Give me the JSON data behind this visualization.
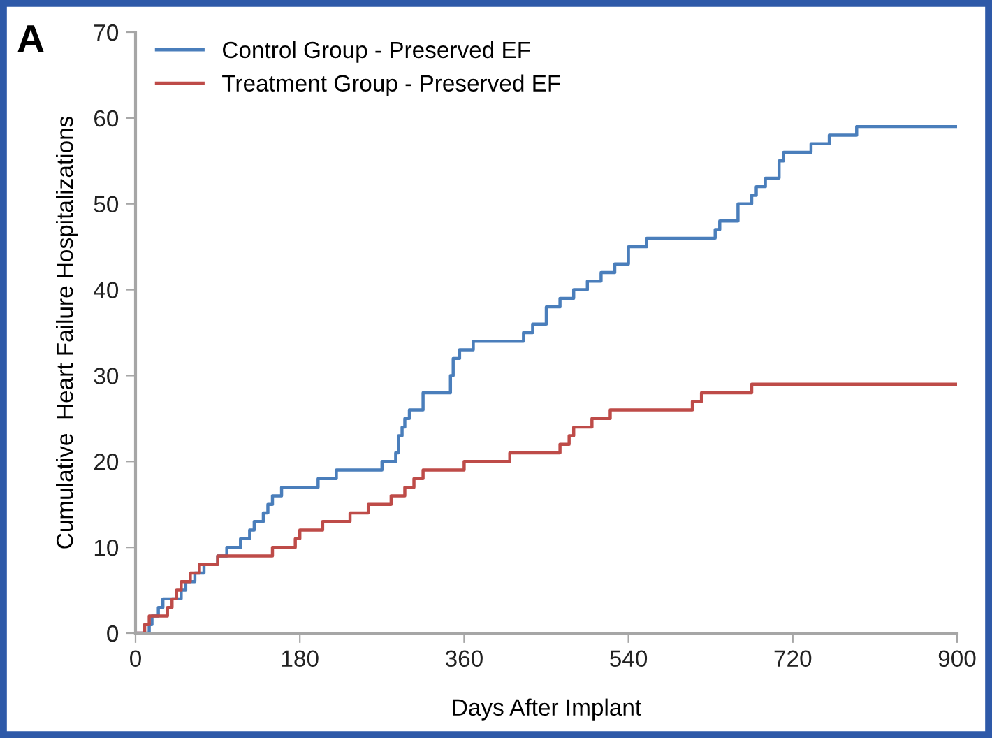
{
  "chart_data": {
    "type": "step",
    "xlabel": "Days After Implant",
    "ylabel": "Cumulative  Heart Failure Hospitalizations",
    "annotations": [
      "A"
    ],
    "xlim": [
      0,
      900
    ],
    "xticks": [
      0,
      180,
      360,
      540,
      720,
      900
    ],
    "ylim": [
      0,
      70
    ],
    "yticks": [
      0,
      10,
      20,
      30,
      40,
      50,
      60,
      70
    ],
    "grid": false,
    "legend": "top left",
    "line_style": "solid",
    "marker": "none",
    "series": [
      {
        "name": "Control Group - Preserved EF",
        "color": "#4a7ebb",
        "x": [
          0,
          15,
          18,
          25,
          30,
          50,
          55,
          65,
          75,
          90,
          100,
          115,
          125,
          130,
          140,
          145,
          150,
          160,
          200,
          220,
          270,
          285,
          288,
          292,
          295,
          300,
          315,
          345,
          348,
          355,
          370,
          425,
          435,
          450,
          465,
          480,
          495,
          510,
          525,
          540,
          560,
          635,
          640,
          660,
          675,
          680,
          690,
          705,
          710,
          740,
          760,
          790,
          900
        ],
        "values": [
          0,
          1,
          2,
          3,
          4,
          5,
          6,
          7,
          8,
          9,
          10,
          11,
          12,
          13,
          14,
          15,
          16,
          17,
          18,
          19,
          20,
          21,
          23,
          24,
          25,
          26,
          28,
          30,
          32,
          33,
          34,
          35,
          36,
          38,
          39,
          40,
          41,
          42,
          43,
          45,
          46,
          47,
          48,
          50,
          51,
          52,
          53,
          55,
          56,
          57,
          58,
          59,
          59
        ]
      },
      {
        "name": "Treatment Group - Preserved EF",
        "color": "#be4b48",
        "x": [
          0,
          10,
          15,
          35,
          40,
          45,
          50,
          60,
          70,
          90,
          150,
          175,
          180,
          205,
          235,
          255,
          280,
          295,
          305,
          315,
          360,
          410,
          465,
          475,
          480,
          500,
          520,
          610,
          620,
          675,
          900
        ],
        "values": [
          0,
          1,
          2,
          3,
          4,
          5,
          6,
          7,
          8,
          9,
          10,
          11,
          12,
          13,
          14,
          15,
          16,
          17,
          18,
          19,
          20,
          21,
          22,
          23,
          24,
          25,
          26,
          27,
          28,
          29,
          29
        ]
      }
    ]
  }
}
